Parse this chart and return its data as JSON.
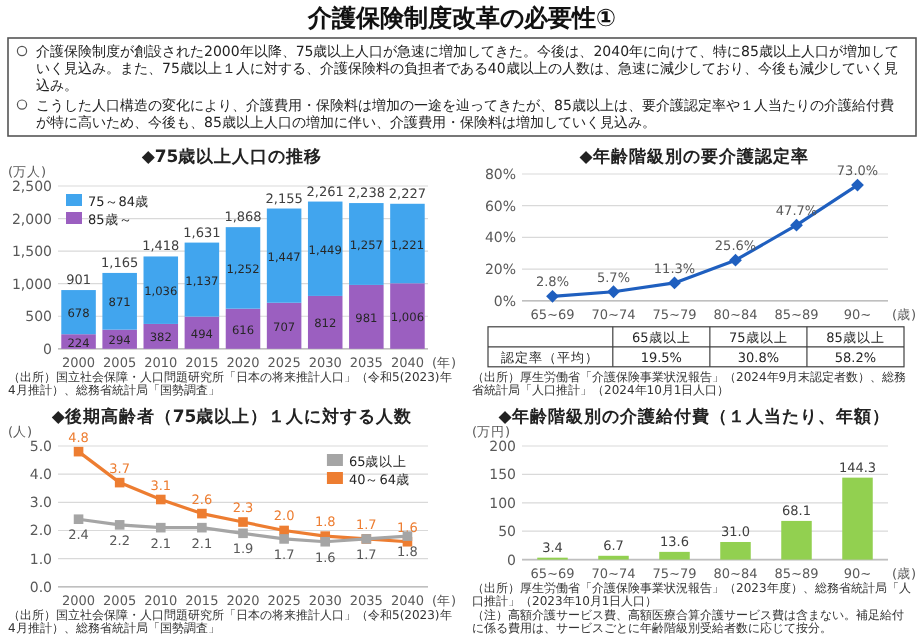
{
  "chart_data": [
    {
      "type": "other",
      "title": "介護保険制度改革の必要性①",
      "annotations": [
        "介護保険制度が創設された2000年以降、75歳以上人口が急速に増加してきた。今後は、2040年に向けて、特に85歳以上人口が増加していく見込み。また、75歳以上１人に対する、介護保険料の負担者である40歳以上の人数は、急速に減少しており、今後も減少していく見込み。",
        "こうした人口構造の変化により、介護費用・保険料は増加の一途を辿ってきたが、85歳以上は、要介護認定率や１人当たりの介護給付費が特に高いため、今後も、85歳以上人口の増加に伴い、介護費用・保険料は増加していく見込み。"
      ]
    },
    {
      "type": "bar",
      "title": "◆75歳以上人口の推移",
      "ylabel": "(万人)",
      "xlabel": "(年)",
      "stacked": true,
      "grid": "y",
      "legend": "top left",
      "categories": [
        "2000",
        "2005",
        "2010",
        "2015",
        "2020",
        "2025",
        "2030",
        "2035",
        "2040"
      ],
      "series": [
        {
          "name": "85歳～",
          "color": "#9b5fc0",
          "values": [
            224,
            294,
            382,
            494,
            616,
            707,
            812,
            981,
            1006
          ],
          "value_labels": [
            "224",
            "294",
            "382",
            "494",
            "616",
            "707",
            "812",
            "981",
            "1,006"
          ]
        },
        {
          "name": "75～84歳",
          "color": "#41a5ee",
          "values": [
            678,
            871,
            1036,
            1137,
            1252,
            1447,
            1449,
            1257,
            1221
          ],
          "value_labels": [
            "678",
            "871",
            "1,036",
            "1,137",
            "1,252",
            "1,447",
            "1,449",
            "1,257",
            "1,221"
          ]
        }
      ],
      "totals": [
        "901",
        "1,165",
        "1,418",
        "1,631",
        "1,868",
        "2,155",
        "2,261",
        "2,238",
        "2,227"
      ],
      "ylim": [
        0,
        2500
      ],
      "yticks": [
        0,
        500,
        {
          "value": 1000,
          "label": "1,000"
        },
        {
          "value": 1500,
          "label": "1,500"
        },
        {
          "value": 2000,
          "label": "2,000"
        },
        {
          "value": 2500,
          "label": "2,500"
        }
      ],
      "annotations": [
        "（出所）国立社会保障・人口問題研究所「日本の将来推計人口」（令和5(2023)年4月推計）、総務省統計局「国勢調査」"
      ]
    },
    {
      "type": "line",
      "title": "◆年齢階級別の要介護認定率",
      "xlabel": "(歳)",
      "grid": "y",
      "marker": "diamond",
      "categories": [
        "65~69",
        "70~74",
        "75~79",
        "80~84",
        "85~89",
        "90~"
      ],
      "series": [
        {
          "color": "#1f5fbf",
          "values": [
            2.8,
            5.7,
            11.3,
            25.6,
            47.7,
            73.0
          ],
          "value_labels": [
            "2.8%",
            "5.7%",
            "11.3%",
            "25.6%",
            "47.7%",
            "73.0%"
          ]
        }
      ],
      "ylim": [
        0,
        80
      ],
      "yticks": [
        {
          "value": 0,
          "label": "0%"
        },
        {
          "value": 20,
          "label": "20%"
        },
        {
          "value": 40,
          "label": "40%"
        },
        {
          "value": 60,
          "label": "60%"
        },
        {
          "value": 80,
          "label": "80%"
        }
      ],
      "annotations": [
        "65歳以上",
        "75歳以上",
        "85歳以上",
        "認定率（平均）",
        "19.5%",
        "30.8%",
        "58.2%",
        "（出所）厚生労働省「介護保険事業状況報告」（2024年9月末認定者数）、総務省統計局「人口推計」（2024年10月1日人口）"
      ]
    },
    {
      "type": "line",
      "title": "◆後期高齢者（75歳以上）１人に対する人数",
      "ylabel": "(人)",
      "xlabel": "(年)",
      "grid": "y",
      "marker": "square",
      "legend": "top right",
      "categories": [
        "2000",
        "2005",
        "2010",
        "2015",
        "2020",
        "2025",
        "2030",
        "2035",
        "2040"
      ],
      "series": [
        {
          "name": "40～64歳",
          "color": "#ed7d31",
          "values": [
            4.8,
            3.7,
            3.1,
            2.6,
            2.3,
            2.0,
            1.8,
            1.7,
            1.6
          ],
          "value_labels": [
            "4.8",
            "3.7",
            "3.1",
            "2.6",
            "2.3",
            "2.0",
            "1.8",
            "1.7",
            "1.6"
          ]
        },
        {
          "name": "65歳以上",
          "color": "#a5a5a5",
          "values": [
            2.4,
            2.2,
            2.1,
            2.1,
            1.9,
            1.7,
            1.6,
            1.7,
            1.8
          ],
          "value_labels": [
            "2.4",
            "2.2",
            "2.1",
            "2.1",
            "1.9",
            "1.7",
            "1.6",
            "1.7",
            "1.8"
          ]
        }
      ],
      "ylim": [
        0,
        5
      ],
      "yticks": [
        {
          "value": 0,
          "label": "0.0"
        },
        {
          "value": 1,
          "label": "1.0"
        },
        {
          "value": 2,
          "label": "2.0"
        },
        {
          "value": 3,
          "label": "3.0"
        },
        {
          "value": 4,
          "label": "4.0"
        },
        {
          "value": 5,
          "label": "5.0"
        }
      ],
      "annotations": [
        "（出所）国立社会保障・人口問題研究所「日本の将来推計人口」（令和5(2023)年4月推計）、総務省統計局「国勢調査」"
      ]
    },
    {
      "type": "bar",
      "title": "◆年齢階級別の介護給付費（１人当たり、年額）",
      "ylabel": "(万円)",
      "xlabel": "(歳)",
      "grid": "y",
      "categories": [
        "65~69",
        "70~74",
        "75~79",
        "80~84",
        "85~89",
        "90~"
      ],
      "series": [
        {
          "color": "#92d050",
          "values": [
            3.4,
            6.7,
            13.6,
            31.0,
            68.1,
            144.3
          ],
          "value_labels": [
            "3.4",
            "6.7",
            "13.6",
            "31.0",
            "68.1",
            "144.3"
          ]
        }
      ],
      "ylim": [
        0,
        200
      ],
      "yticks": [
        0,
        50,
        100,
        150,
        200
      ],
      "annotations": [
        "（出所）厚生労働省「介護保険事業状況報告」（2023年度）、総務省統計局「人口推計」（2023年10月1日人口）",
        "（注）高額介護サービス費、高額医療合算介護サービス費は含まない。補足給付に係る費用は、サービスごとに年齢階級別受給者数に応じて按分。"
      ]
    }
  ]
}
